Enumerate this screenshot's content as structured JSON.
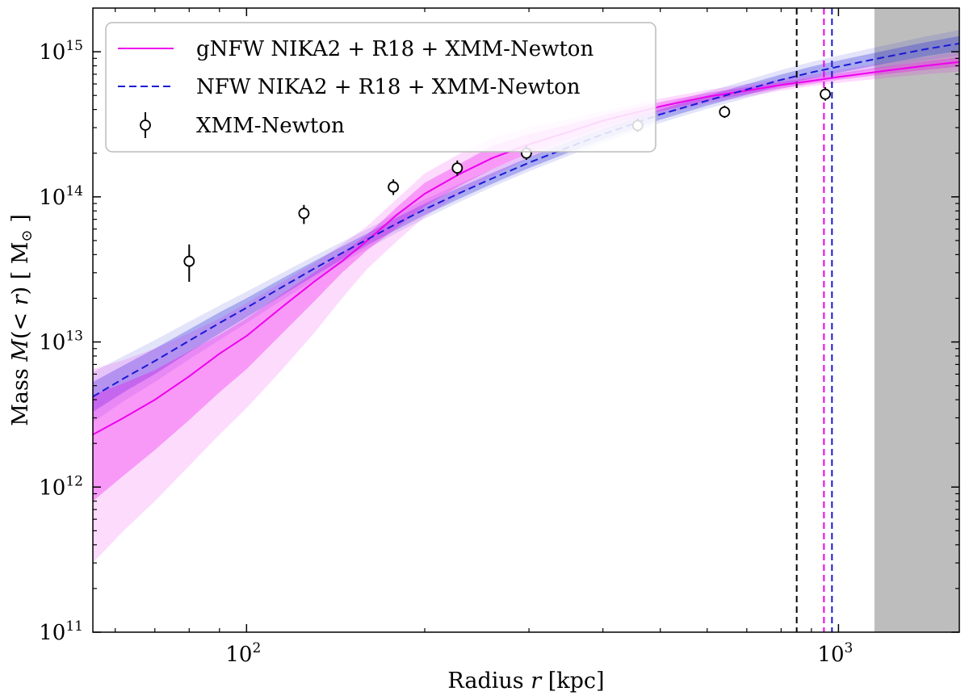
{
  "chart_data": {
    "type": "line",
    "title": "",
    "xscale": "log",
    "yscale": "log",
    "xlim": [
      55,
      1600
    ],
    "ylim": [
      100000000000.0,
      2000000000000000.0
    ],
    "xlabel": {
      "prefix": "Radius ",
      "var": "r",
      "suffix": " [kpc]"
    },
    "ylabel": {
      "prefix": "Mass ",
      "var": "M",
      "mid": "(< ",
      "var2": "r",
      "suffix": ") [ M",
      "sub": "⊙",
      "end": " ]"
    },
    "x_major_ticks": [
      {
        "value": 100,
        "base": "10",
        "exp": "2"
      },
      {
        "value": 1000,
        "base": "10",
        "exp": "3"
      }
    ],
    "y_major_ticks": [
      {
        "value": 100000000000.0,
        "base": "10",
        "exp": "11"
      },
      {
        "value": 1000000000000.0,
        "base": "10",
        "exp": "12"
      },
      {
        "value": 10000000000000.0,
        "base": "10",
        "exp": "13"
      },
      {
        "value": 100000000000000.0,
        "base": "10",
        "exp": "14"
      },
      {
        "value": 1000000000000000.0,
        "base": "10",
        "exp": "15"
      }
    ],
    "series": [
      {
        "name": "gNFW NIKA2 + R18 + XMM-Newton",
        "color": "#ee00ee",
        "style": "solid",
        "x": [
          55,
          62,
          70,
          80,
          90,
          100,
          115,
          130,
          145,
          160,
          180,
          200,
          230,
          260,
          300,
          350,
          400,
          500,
          600,
          700,
          800,
          900,
          1000,
          1200,
          1400,
          1600
        ],
        "y": [
          2300000000000.0,
          3000000000000.0,
          4000000000000.0,
          5800000000000.0,
          8300000000000.0,
          11000000000000.0,
          17500000000000.0,
          26000000000000.0,
          36000000000000.0,
          50000000000000.0,
          76000000000000.0,
          105000000000000.0,
          145000000000000.0,
          185000000000000.0,
          230000000000000.0,
          280000000000000.0,
          335000000000000.0,
          420000000000000.0,
          490000000000000.0,
          540000000000000.0,
          590000000000000.0,
          630000000000000.0,
          670000000000000.0,
          740000000000000.0,
          800000000000000.0,
          850000000000000.0
        ],
        "band1_low": [
          800000000000.0,
          1200000000000.0,
          1800000000000.0,
          2900000000000.0,
          4500000000000.0,
          6500000000000.0,
          11500000000000.0,
          19000000000000.0,
          30000000000000.0,
          43000000000000.0,
          62000000000000.0,
          86000000000000.0,
          120000000000000.0,
          155000000000000.0,
          200000000000000.0,
          250000000000000.0,
          305000000000000.0,
          390000000000000.0,
          460000000000000.0,
          510000000000000.0,
          560000000000000.0,
          600000000000000.0,
          640000000000000.0,
          700000000000000.0,
          750000000000000.0,
          790000000000000.0
        ],
        "band1_high": [
          4300000000000.0,
          5200000000000.0,
          6400000000000.0,
          8600000000000.0,
          11200000000000.0,
          14500000000000.0,
          21500000000000.0,
          30000000000000.0,
          41000000000000.0,
          55000000000000.0,
          86000000000000.0,
          125000000000000.0,
          170000000000000.0,
          225000000000000.0,
          270000000000000.0,
          315000000000000.0,
          365000000000000.0,
          450000000000000.0,
          520000000000000.0,
          570000000000000.0,
          620000000000000.0,
          660000000000000.0,
          710000000000000.0,
          790000000000000.0,
          860000000000000.0,
          920000000000000.0
        ],
        "band2_low": [
          300000000000.0,
          500000000000.0,
          800000000000.0,
          1400000000000.0,
          2300000000000.0,
          3500000000000.0,
          6500000000000.0,
          11500000000000.0,
          20000000000000.0,
          32000000000000.0,
          50000000000000.0,
          73000000000000.0,
          105000000000000.0,
          138000000000000.0,
          185000000000000.0,
          235000000000000.0,
          285000000000000.0,
          370000000000000.0,
          440000000000000.0,
          490000000000000.0,
          540000000000000.0,
          580000000000000.0,
          610000000000000.0,
          660000000000000.0,
          700000000000000.0,
          730000000000000.0
        ],
        "band2_high": [
          6500000000000.0,
          7500000000000.0,
          9000000000000.0,
          11500000000000.0,
          14500000000000.0,
          18500000000000.0,
          26000000000000.0,
          35000000000000.0,
          47000000000000.0,
          63000000000000.0,
          98000000000000.0,
          145000000000000.0,
          200000000000000.0,
          255000000000000.0,
          300000000000000.0,
          345000000000000.0,
          390000000000000.0,
          475000000000000.0,
          545000000000000.0,
          600000000000000.0,
          650000000000000.0,
          695000000000000.0,
          750000000000000.0,
          840000000000000.0,
          920000000000000.0,
          1000000000000000.0
        ]
      },
      {
        "name": "NFW NIKA2 + R18 + XMM-Newton",
        "color": "#1a1ad6",
        "style": "dashed",
        "x": [
          55,
          62,
          70,
          80,
          90,
          100,
          115,
          130,
          145,
          160,
          180,
          200,
          230,
          260,
          300,
          350,
          400,
          500,
          600,
          700,
          800,
          900,
          1000,
          1200,
          1400,
          1600
        ],
        "y": [
          4200000000000.0,
          5600000000000.0,
          7400000000000.0,
          10200000000000.0,
          13500000000000.0,
          17200000000000.0,
          24000000000000.0,
          32000000000000.0,
          41000000000000.0,
          51000000000000.0,
          66000000000000.0,
          82000000000000.0,
          107000000000000.0,
          134000000000000.0,
          172000000000000.0,
          220000000000000.0,
          270000000000000.0,
          370000000000000.0,
          460000000000000.0,
          550000000000000.0,
          640000000000000.0,
          720000000000000.0,
          790000000000000.0,
          920000000000000.0,
          1040000000000000.0,
          1140000000000000.0
        ],
        "band1_low": [
          3300000000000.0,
          4500000000000.0,
          6000000000000.0,
          8500000000000.0,
          11400000000000.0,
          14800000000000.0,
          21000000000000.0,
          28500000000000.0,
          37000000000000.0,
          46500000000000.0,
          60000000000000.0,
          75000000000000.0,
          98000000000000.0,
          123000000000000.0,
          158000000000000.0,
          202000000000000.0,
          248000000000000.0,
          340000000000000.0,
          425000000000000.0,
          505000000000000.0,
          585000000000000.0,
          655000000000000.0,
          715000000000000.0,
          830000000000000.0,
          930000000000000.0,
          1010000000000000.0
        ],
        "band1_high": [
          5300000000000.0,
          6900000000000.0,
          9000000000000.0,
          12200000000000.0,
          16000000000000.0,
          20000000000000.0,
          27500000000000.0,
          36000000000000.0,
          45500000000000.0,
          56000000000000.0,
          72500000000000.0,
          90000000000000.0,
          117000000000000.0,
          146000000000000.0,
          187000000000000.0,
          239000000000000.0,
          293000000000000.0,
          400000000000000.0,
          498000000000000.0,
          597000000000000.0,
          698000000000000.0,
          790000000000000.0,
          870000000000000.0,
          1020000000000000.0,
          1160000000000000.0,
          1280000000000000.0
        ],
        "band2_low": [
          2800000000000.0,
          3900000000000.0,
          5300000000000.0,
          7600000000000.0,
          10300000000000.0,
          13500000000000.0,
          19500000000000.0,
          26600000000000.0,
          35000000000000.0,
          44000000000000.0,
          57000000000000.0,
          71000000000000.0,
          93000000000000.0,
          117000000000000.0,
          150000000000000.0,
          192000000000000.0,
          236000000000000.0,
          323000000000000.0,
          405000000000000.0,
          480000000000000.0,
          555000000000000.0,
          620000000000000.0,
          675000000000000.0,
          780000000000000.0,
          870000000000000.0,
          940000000000000.0
        ],
        "band2_high": [
          6200000000000.0,
          8000000000000.0,
          10300000000000.0,
          13800000000000.0,
          17800000000000.0,
          22200000000000.0,
          30000000000000.0,
          39000000000000.0,
          49000000000000.0,
          60000000000000.0,
          77500000000000.0,
          96000000000000.0,
          124000000000000.0,
          155000000000000.0,
          198000000000000.0,
          253000000000000.0,
          310000000000000.0,
          425000000000000.0,
          530000000000000.0,
          638000000000000.0,
          750000000000000.0,
          850000000000000.0,
          940000000000000.0,
          1110000000000000.0,
          1270000000000000.0,
          1410000000000000.0
        ]
      }
    ],
    "points": {
      "name": "XMM-Newton",
      "x": [
        80,
        125,
        177,
        227,
        297,
        458,
        642,
        950
      ],
      "y": [
        36000000000000.0,
        77000000000000.0,
        117000000000000.0,
        158000000000000.0,
        200000000000000.0,
        310000000000000.0,
        385000000000000.0,
        510000000000000.0
      ],
      "yerr_low": [
        26000000000000.0,
        65000000000000.0,
        103000000000000.0,
        140000000000000.0,
        180000000000000.0,
        280000000000000.0,
        350000000000000.0,
        460000000000000.0
      ],
      "yerr_high": [
        47000000000000.0,
        88000000000000.0,
        132000000000000.0,
        178000000000000.0,
        225000000000000.0,
        345000000000000.0,
        425000000000000.0,
        570000000000000.0
      ]
    },
    "vertical_lines": [
      {
        "x": 850,
        "color": "#000000"
      },
      {
        "x": 945,
        "color": "#ee00ee"
      },
      {
        "x": 975,
        "color": "#1a1ad6"
      }
    ],
    "shaded_region": {
      "x_start": 1150,
      "x_end": 1600,
      "color": "#bdbdbd"
    },
    "legend": {
      "position": "top-left"
    }
  }
}
